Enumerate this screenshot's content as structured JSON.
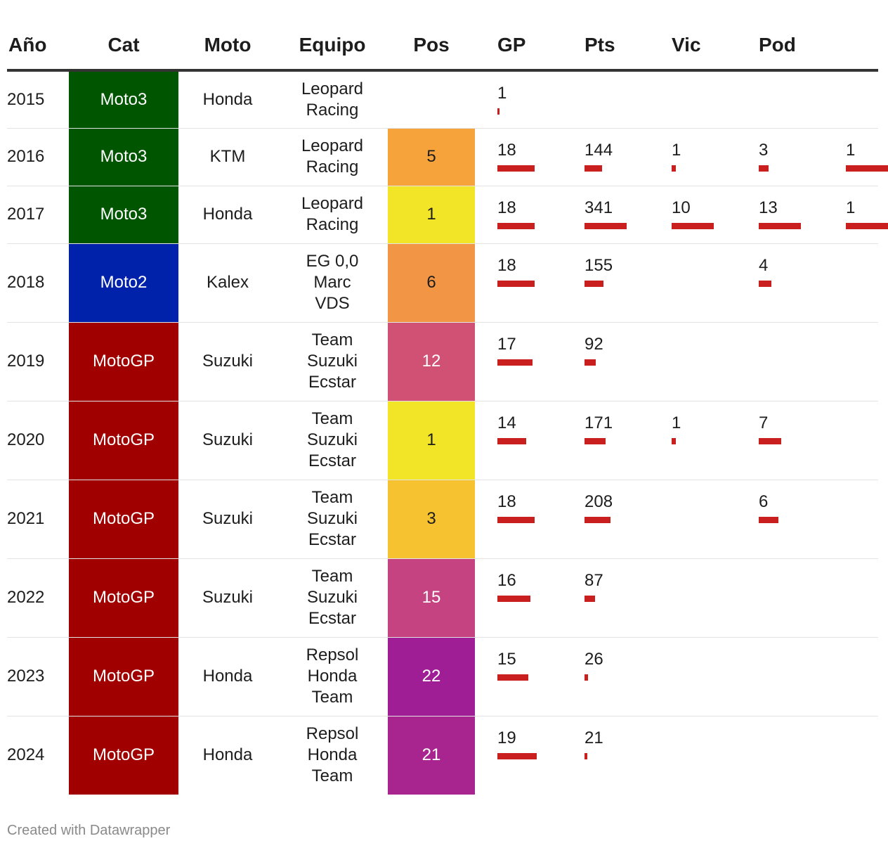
{
  "table": {
    "headers": {
      "year": "Año",
      "cat": "Cat",
      "moto": "Moto",
      "team": "Equipo",
      "pos": "Pos",
      "gp": "GP",
      "pts": "Pts",
      "vic": "Vic",
      "pod": "Pod"
    },
    "rows": [
      {
        "year": "2015",
        "cat": "Moto3",
        "moto": "Honda",
        "team": [
          "Leopard",
          "Racing"
        ],
        "pos": "",
        "gp": "1",
        "pts": "",
        "vic": "",
        "pod": "",
        "extra": ""
      },
      {
        "year": "2016",
        "cat": "Moto3",
        "moto": "KTM",
        "team": [
          "Leopard",
          "Racing"
        ],
        "pos": "5",
        "gp": "18",
        "pts": "144",
        "vic": "1",
        "pod": "3",
        "extra": "1"
      },
      {
        "year": "2017",
        "cat": "Moto3",
        "moto": "Honda",
        "team": [
          "Leopard",
          "Racing"
        ],
        "pos": "1",
        "gp": "18",
        "pts": "341",
        "vic": "10",
        "pod": "13",
        "extra": "1"
      },
      {
        "year": "2018",
        "cat": "Moto2",
        "moto": "Kalex",
        "team": [
          "EG 0,0",
          "Marc",
          "VDS"
        ],
        "pos": "6",
        "gp": "18",
        "pts": "155",
        "vic": "",
        "pod": "4",
        "extra": ""
      },
      {
        "year": "2019",
        "cat": "MotoGP",
        "moto": "Suzuki",
        "team": [
          "Team",
          "Suzuki",
          "Ecstar"
        ],
        "pos": "12",
        "gp": "17",
        "pts": "92",
        "vic": "",
        "pod": "",
        "extra": ""
      },
      {
        "year": "2020",
        "cat": "MotoGP",
        "moto": "Suzuki",
        "team": [
          "Team",
          "Suzuki",
          "Ecstar"
        ],
        "pos": "1",
        "gp": "14",
        "pts": "171",
        "vic": "1",
        "pod": "7",
        "extra": ""
      },
      {
        "year": "2021",
        "cat": "MotoGP",
        "moto": "Suzuki",
        "team": [
          "Team",
          "Suzuki",
          "Ecstar"
        ],
        "pos": "3",
        "gp": "18",
        "pts": "208",
        "vic": "",
        "pod": "6",
        "extra": ""
      },
      {
        "year": "2022",
        "cat": "MotoGP",
        "moto": "Suzuki",
        "team": [
          "Team",
          "Suzuki",
          "Ecstar"
        ],
        "pos": "15",
        "gp": "16",
        "pts": "87",
        "vic": "",
        "pod": "",
        "extra": ""
      },
      {
        "year": "2023",
        "cat": "MotoGP",
        "moto": "Honda",
        "team": [
          "Repsol",
          "Honda",
          "Team"
        ],
        "pos": "22",
        "gp": "15",
        "pts": "26",
        "vic": "",
        "pod": "",
        "extra": ""
      },
      {
        "year": "2024",
        "cat": "MotoGP",
        "moto": "Honda",
        "team": [
          "Repsol",
          "Honda",
          "Team"
        ],
        "pos": "21",
        "gp": "19",
        "pts": "21",
        "vic": "",
        "pod": "",
        "extra": ""
      }
    ]
  },
  "colors": {
    "category": {
      "Moto3": "#005500",
      "Moto2": "#0022aa",
      "MotoGP": "#a10000"
    },
    "position": {
      "1": "#f2e528",
      "3": "#f7c22f",
      "5": "#f7a33c",
      "6": "#f29545",
      "12": "#d15175",
      "15": "#c44380",
      "21": "#a8258f",
      "22": "#a01e95"
    },
    "bar": "#c91f1f"
  },
  "chart_data": {
    "type": "table",
    "columns": [
      "Año",
      "Cat",
      "Moto",
      "Equipo",
      "Pos",
      "GP",
      "Pts",
      "Vic",
      "Pod"
    ],
    "bar_columns": [
      "GP",
      "Pts",
      "Vic",
      "Pod"
    ]
  },
  "footer": {
    "credit": "Created with Datawrapper"
  }
}
